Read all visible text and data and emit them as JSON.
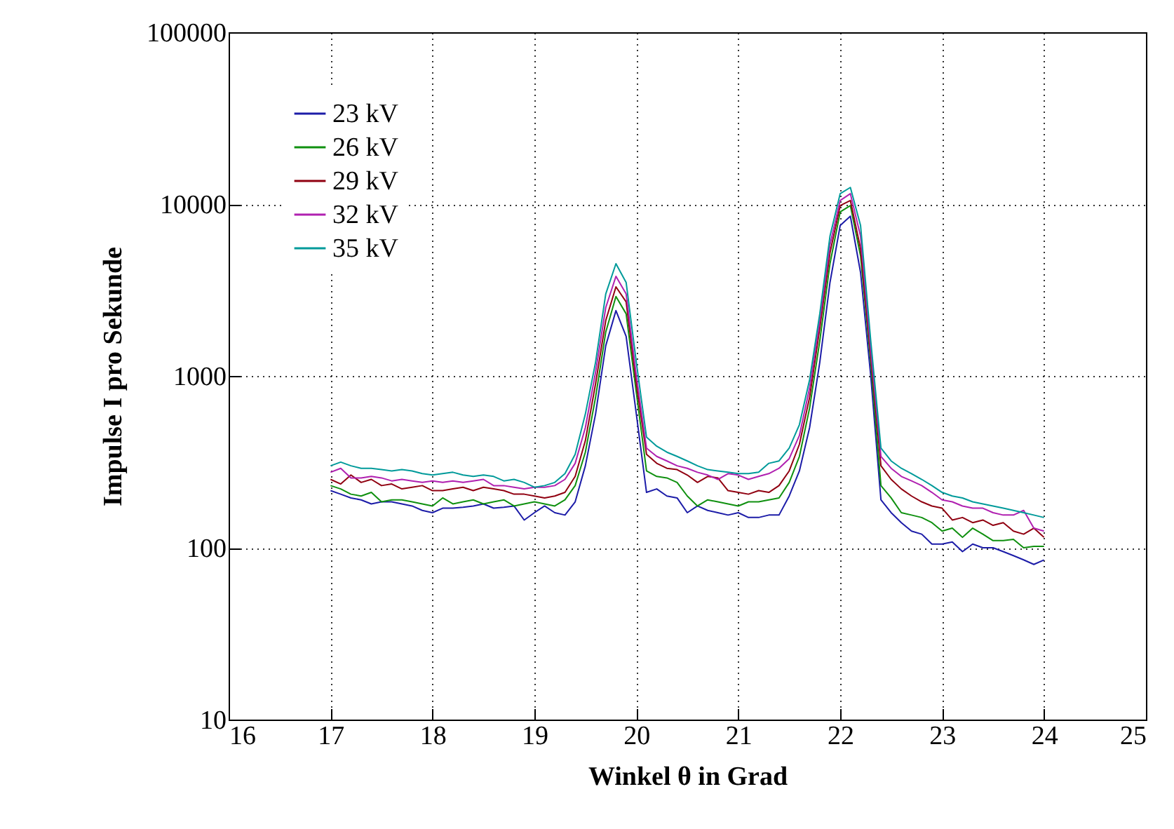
{
  "chart_data": {
    "type": "line",
    "xlabel": "Winkel θ in Grad",
    "ylabel": "Impulse I pro Sekunde",
    "log": "y",
    "grid": true,
    "legend": "top left",
    "line_style": "solid",
    "xlim": [
      16,
      25
    ],
    "xticks": [
      16,
      17,
      18,
      19,
      20,
      21,
      22,
      23,
      24,
      25
    ],
    "ylim": [
      10,
      100000
    ],
    "yticks": [
      10,
      100,
      1000,
      10000,
      100000
    ],
    "x": [
      17,
      17.1,
      17.2,
      17.3,
      17.4,
      17.5,
      17.6,
      17.7,
      17.8,
      17.9,
      18,
      18.1,
      18.2,
      18.3,
      18.4,
      18.5,
      18.6,
      18.7,
      18.8,
      18.9,
      19,
      19.1,
      19.2,
      19.3,
      19.4,
      19.5,
      19.6,
      19.7,
      19.8,
      19.9,
      20,
      20.1,
      20.2,
      20.3,
      20.4,
      20.5,
      20.6,
      20.7,
      20.8,
      20.9,
      21,
      21.1,
      21.2,
      21.3,
      21.4,
      21.5,
      21.6,
      21.7,
      21.8,
      21.9,
      22,
      22.1,
      22.2,
      22.3,
      22.4,
      22.5,
      22.6,
      22.7,
      22.8,
      22.9,
      23,
      23.1,
      23.2,
      23.3,
      23.4,
      23.5,
      23.6,
      23.7,
      23.8,
      23.9,
      24
    ],
    "series": [
      {
        "name": "23 kV",
        "color": "#1c1ca8",
        "values": [
          215,
          205,
          195,
          190,
          180,
          185,
          185,
          180,
          175,
          165,
          160,
          170,
          170,
          172,
          175,
          180,
          170,
          172,
          175,
          145,
          160,
          175,
          160,
          155,
          185,
          300,
          600,
          1500,
          2400,
          1700,
          600,
          210,
          220,
          200,
          195,
          160,
          175,
          165,
          160,
          155,
          160,
          150,
          150,
          155,
          155,
          200,
          280,
          500,
          1200,
          3500,
          7500,
          8500,
          4000,
          1000,
          190,
          160,
          140,
          125,
          120,
          105,
          105,
          108,
          95,
          105,
          100,
          100,
          95,
          90,
          85,
          80,
          85
        ]
      },
      {
        "name": "26 kV",
        "color": "#0f900f",
        "values": [
          230,
          220,
          205,
          200,
          210,
          185,
          190,
          190,
          185,
          180,
          175,
          195,
          180,
          185,
          190,
          180,
          185,
          190,
          175,
          180,
          185,
          180,
          175,
          190,
          230,
          360,
          750,
          1800,
          2900,
          2300,
          800,
          280,
          260,
          255,
          240,
          200,
          175,
          190,
          185,
          180,
          175,
          185,
          185,
          190,
          195,
          240,
          340,
          650,
          1600,
          4500,
          9000,
          9800,
          5000,
          1200,
          230,
          195,
          160,
          155,
          150,
          140,
          125,
          130,
          115,
          130,
          120,
          110,
          110,
          112,
          100,
          102,
          102
        ]
      },
      {
        "name": "29 kV",
        "color": "#900010",
        "values": [
          250,
          235,
          265,
          240,
          250,
          230,
          235,
          220,
          225,
          230,
          215,
          215,
          220,
          225,
          215,
          225,
          220,
          215,
          205,
          205,
          200,
          195,
          200,
          210,
          260,
          420,
          900,
          2100,
          3300,
          2700,
          900,
          350,
          310,
          290,
          285,
          265,
          240,
          260,
          255,
          215,
          210,
          205,
          215,
          210,
          230,
          280,
          400,
          750,
          1900,
          5200,
          9800,
          10500,
          5500,
          1300,
          300,
          250,
          220,
          200,
          185,
          175,
          170,
          145,
          150,
          140,
          145,
          135,
          140,
          125,
          120,
          130,
          115
        ]
      },
      {
        "name": "32 kV",
        "color": "#b020b0",
        "values": [
          275,
          290,
          255,
          255,
          260,
          255,
          245,
          250,
          245,
          240,
          245,
          240,
          245,
          240,
          245,
          250,
          230,
          230,
          225,
          220,
          225,
          225,
          230,
          250,
          310,
          500,
          1050,
          2500,
          3800,
          3000,
          1000,
          380,
          340,
          320,
          300,
          290,
          275,
          265,
          250,
          270,
          265,
          250,
          260,
          270,
          290,
          330,
          450,
          850,
          2100,
          5800,
          10500,
          11500,
          6500,
          1400,
          340,
          290,
          260,
          245,
          230,
          210,
          190,
          185,
          175,
          170,
          170,
          160,
          155,
          155,
          165,
          130,
          125
        ]
      },
      {
        "name": "35 kV",
        "color": "#009a9a",
        "values": [
          300,
          315,
          300,
          290,
          290,
          285,
          280,
          285,
          280,
          270,
          265,
          270,
          275,
          265,
          260,
          265,
          260,
          245,
          250,
          240,
          225,
          230,
          240,
          270,
          350,
          600,
          1200,
          3000,
          4500,
          3500,
          1200,
          440,
          390,
          360,
          340,
          320,
          300,
          285,
          280,
          275,
          270,
          270,
          275,
          310,
          320,
          380,
          520,
          950,
          2300,
          6500,
          11500,
          12500,
          7500,
          1600,
          380,
          320,
          290,
          270,
          250,
          230,
          210,
          200,
          195,
          185,
          180,
          175,
          170,
          165,
          160,
          155,
          150
        ]
      }
    ]
  }
}
